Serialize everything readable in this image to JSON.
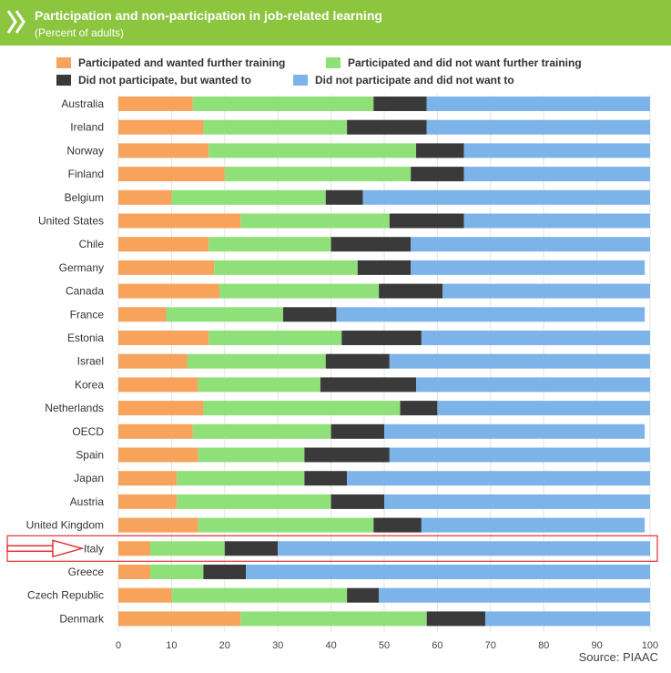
{
  "header": {
    "title": "Participation and non-participation in job-related learning",
    "subtitle": "(Percent of adults)"
  },
  "source": "Source: PIAAC",
  "colors": {
    "header_bg": "#8cc63f",
    "participated_wanted": "#f7a35c",
    "participated_not_wanted": "#90e07a",
    "not_participated_wanted": "#3a3a3a",
    "not_participated_not_wanted": "#7cb3e9",
    "highlight": "#e03030"
  },
  "chart_data": {
    "type": "bar",
    "orientation": "horizontal",
    "stacked": true,
    "title": "Participation and non-participation in job-related learning",
    "subtitle": "(Percent of adults)",
    "xlim": [
      0,
      100
    ],
    "xticks": [
      "0",
      "10",
      "20",
      "30",
      "40",
      "50",
      "60",
      "70",
      "80",
      "90",
      "100"
    ],
    "legend_position": "top",
    "highlighted_category": "Italy",
    "categories": [
      "Australia",
      "Ireland",
      "Norway",
      "Finland",
      "Belgium",
      "United States",
      "Chile",
      "Germany",
      "Canada",
      "France",
      "Estonia",
      "Israel",
      "Korea",
      "Netherlands",
      "OECD",
      "Spain",
      "Japan",
      "Austria",
      "United Kingdom",
      "Italy",
      "Greece",
      "Czech Republic",
      "Denmark"
    ],
    "series": [
      {
        "name": "Participated and wanted further training",
        "color": "#f7a35c",
        "values": [
          14,
          16,
          17,
          20,
          10,
          23,
          17,
          18,
          19,
          9,
          17,
          13,
          15,
          16,
          14,
          15,
          11,
          11,
          15,
          6,
          6,
          10,
          23
        ]
      },
      {
        "name": "Participated and did not want further training",
        "color": "#90e07a",
        "values": [
          34,
          27,
          39,
          35,
          29,
          28,
          23,
          27,
          30,
          22,
          25,
          26,
          23,
          37,
          26,
          20,
          24,
          29,
          33,
          14,
          10,
          33,
          35
        ]
      },
      {
        "name": "Did not participate, but wanted to",
        "color": "#3a3a3a",
        "values": [
          10,
          15,
          9,
          10,
          7,
          14,
          15,
          10,
          12,
          10,
          15,
          12,
          18,
          7,
          10,
          16,
          8,
          10,
          9,
          10,
          8,
          6,
          11
        ]
      },
      {
        "name": "Did not participate and did not want to",
        "color": "#7cb3e9",
        "values": [
          42,
          42,
          35,
          35,
          54,
          35,
          45,
          44,
          39,
          58,
          43,
          49,
          44,
          40,
          49,
          49,
          57,
          50,
          42,
          70,
          76,
          51,
          31
        ]
      }
    ]
  }
}
